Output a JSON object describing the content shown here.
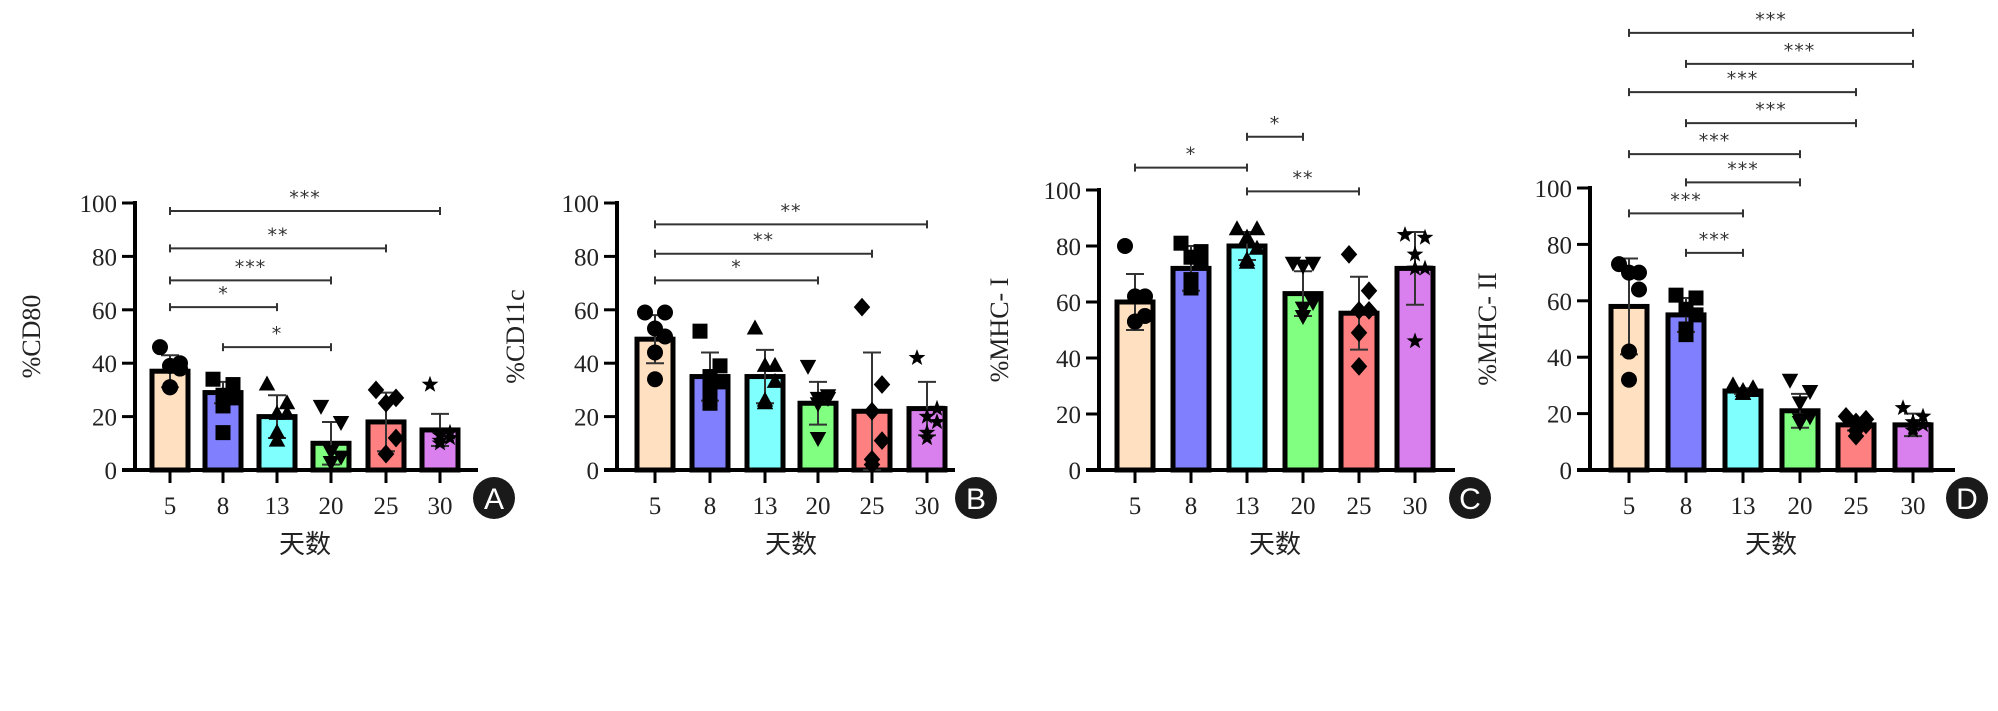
{
  "chart_data": [
    {
      "type": "bar",
      "panel": "A",
      "ylabel": "%CD80",
      "xlabel": "天数",
      "ylim": [
        0,
        100
      ],
      "yticks": [
        0,
        20,
        40,
        60,
        80,
        100
      ],
      "categories": [
        "5",
        "8",
        "13",
        "20",
        "25",
        "30"
      ],
      "values": [
        37,
        29,
        20,
        10,
        18,
        15
      ],
      "errors": [
        6,
        4,
        8,
        8,
        11,
        6
      ],
      "markers": [
        "circle",
        "square",
        "triangle-up",
        "triangle-down",
        "diamond",
        "star"
      ],
      "points": [
        [
          46,
          40,
          39,
          38,
          31,
          31
        ],
        [
          34,
          32,
          28,
          27,
          24,
          14
        ],
        [
          32,
          25,
          21,
          21,
          14,
          11
        ],
        [
          24,
          18,
          7,
          5,
          3,
          3
        ],
        [
          30,
          27,
          25,
          12,
          6,
          6
        ],
        [
          32,
          14,
          13,
          12,
          11,
          10
        ]
      ],
      "significance": [
        {
          "from": "5",
          "to": "30",
          "label": "***",
          "y": 97
        },
        {
          "from": "5",
          "to": "25",
          "label": "**",
          "y": 83
        },
        {
          "from": "5",
          "to": "20",
          "label": "***",
          "y": 71
        },
        {
          "from": "5",
          "to": "13",
          "label": "*",
          "y": 61
        },
        {
          "from": "8",
          "to": "20",
          "label": "*",
          "y": 46
        }
      ]
    },
    {
      "type": "bar",
      "panel": "B",
      "ylabel": "%CD11c",
      "xlabel": "天数",
      "ylim": [
        0,
        100
      ],
      "yticks": [
        0,
        20,
        40,
        60,
        80,
        100
      ],
      "categories": [
        "5",
        "8",
        "13",
        "20",
        "25",
        "30"
      ],
      "values": [
        49,
        35,
        35,
        25,
        22,
        23
      ],
      "errors": [
        9,
        9,
        10,
        8,
        22,
        10
      ],
      "markers": [
        "circle",
        "square",
        "triangle-up",
        "triangle-down",
        "diamond",
        "star"
      ],
      "points": [
        [
          59,
          59,
          53,
          50,
          44,
          34
        ],
        [
          52,
          39,
          35,
          33,
          30,
          25
        ],
        [
          53,
          39,
          39,
          33,
          26,
          25
        ],
        [
          39,
          28,
          27,
          27,
          25,
          12
        ],
        [
          61,
          32,
          22,
          11,
          4,
          2
        ],
        [
          42,
          23,
          20,
          18,
          14,
          12
        ]
      ],
      "significance": [
        {
          "from": "5",
          "to": "30",
          "label": "**",
          "y": 92
        },
        {
          "from": "5",
          "to": "25",
          "label": "**",
          "y": 81
        },
        {
          "from": "5",
          "to": "20",
          "label": "*",
          "y": 71
        }
      ]
    },
    {
      "type": "bar",
      "panel": "C",
      "ylabel": "%MHC- I",
      "xlabel": "天数",
      "ylim": [
        0,
        100
      ],
      "yticks": [
        0,
        20,
        40,
        60,
        80,
        100
      ],
      "categories": [
        "5",
        "8",
        "13",
        "20",
        "25",
        "30"
      ],
      "values": [
        60,
        72,
        80,
        63,
        56,
        72
      ],
      "errors": [
        10,
        8,
        5,
        8,
        13,
        13
      ],
      "markers": [
        "circle",
        "square",
        "triangle-up",
        "triangle-down",
        "diamond",
        "star"
      ],
      "points": [
        [
          80,
          62,
          62,
          55,
          53,
          53
        ],
        [
          81,
          78,
          76,
          74,
          68,
          65
        ],
        [
          86,
          86,
          83,
          79,
          75,
          74
        ],
        [
          74,
          74,
          73,
          60,
          58,
          55
        ],
        [
          77,
          64,
          57,
          57,
          49,
          37
        ],
        [
          84,
          83,
          77,
          72,
          72,
          46
        ]
      ],
      "significance": [
        {
          "from": "13",
          "to": "20",
          "label": "*",
          "y": 119
        },
        {
          "from": "5",
          "to": "13",
          "label": "*",
          "y": 108
        },
        {
          "from": "13",
          "to": "25",
          "label": "**",
          "y": 99.5
        }
      ]
    },
    {
      "type": "bar",
      "panel": "D",
      "ylabel": "%MHC- II",
      "xlabel": "天数",
      "ylim": [
        0,
        100
      ],
      "yticks": [
        0,
        20,
        40,
        60,
        80,
        100
      ],
      "categories": [
        "5",
        "8",
        "13",
        "20",
        "25",
        "30"
      ],
      "values": [
        58,
        55,
        28,
        21,
        16,
        16
      ],
      "errors": [
        17,
        6,
        1,
        6,
        2,
        4
      ],
      "markers": [
        "circle",
        "square",
        "triangle-up",
        "triangle-down",
        "diamond",
        "star"
      ],
      "points": [
        [
          73,
          70,
          70,
          64,
          42,
          32
        ],
        [
          62,
          61,
          57,
          55,
          50,
          48
        ],
        [
          30,
          29,
          28,
          28,
          27,
          27
        ],
        [
          32,
          28,
          24,
          19,
          18,
          17
        ],
        [
          19,
          18,
          17,
          16,
          14,
          12
        ],
        [
          22,
          19,
          17,
          16,
          15,
          14
        ]
      ],
      "significance": [
        {
          "from": "5",
          "to": "30",
          "label": "***",
          "y": 155
        },
        {
          "from": "8",
          "to": "30",
          "label": "***",
          "y": 144
        },
        {
          "from": "5",
          "to": "25",
          "label": "***",
          "y": 134
        },
        {
          "from": "8",
          "to": "25",
          "label": "***",
          "y": 123
        },
        {
          "from": "5",
          "to": "20",
          "label": "***",
          "y": 112
        },
        {
          "from": "8",
          "to": "20",
          "label": "***",
          "y": 102
        },
        {
          "from": "5",
          "to": "13",
          "label": "***",
          "y": 91
        },
        {
          "from": "8",
          "to": "13",
          "label": "***",
          "y": 77
        }
      ]
    }
  ],
  "bar_colors": [
    "#FFE0C0",
    "#8080FF",
    "#80FFFF",
    "#80FF80",
    "#FF8080",
    "#DA80EE"
  ],
  "panel_badge_color": "#1a1a1a"
}
